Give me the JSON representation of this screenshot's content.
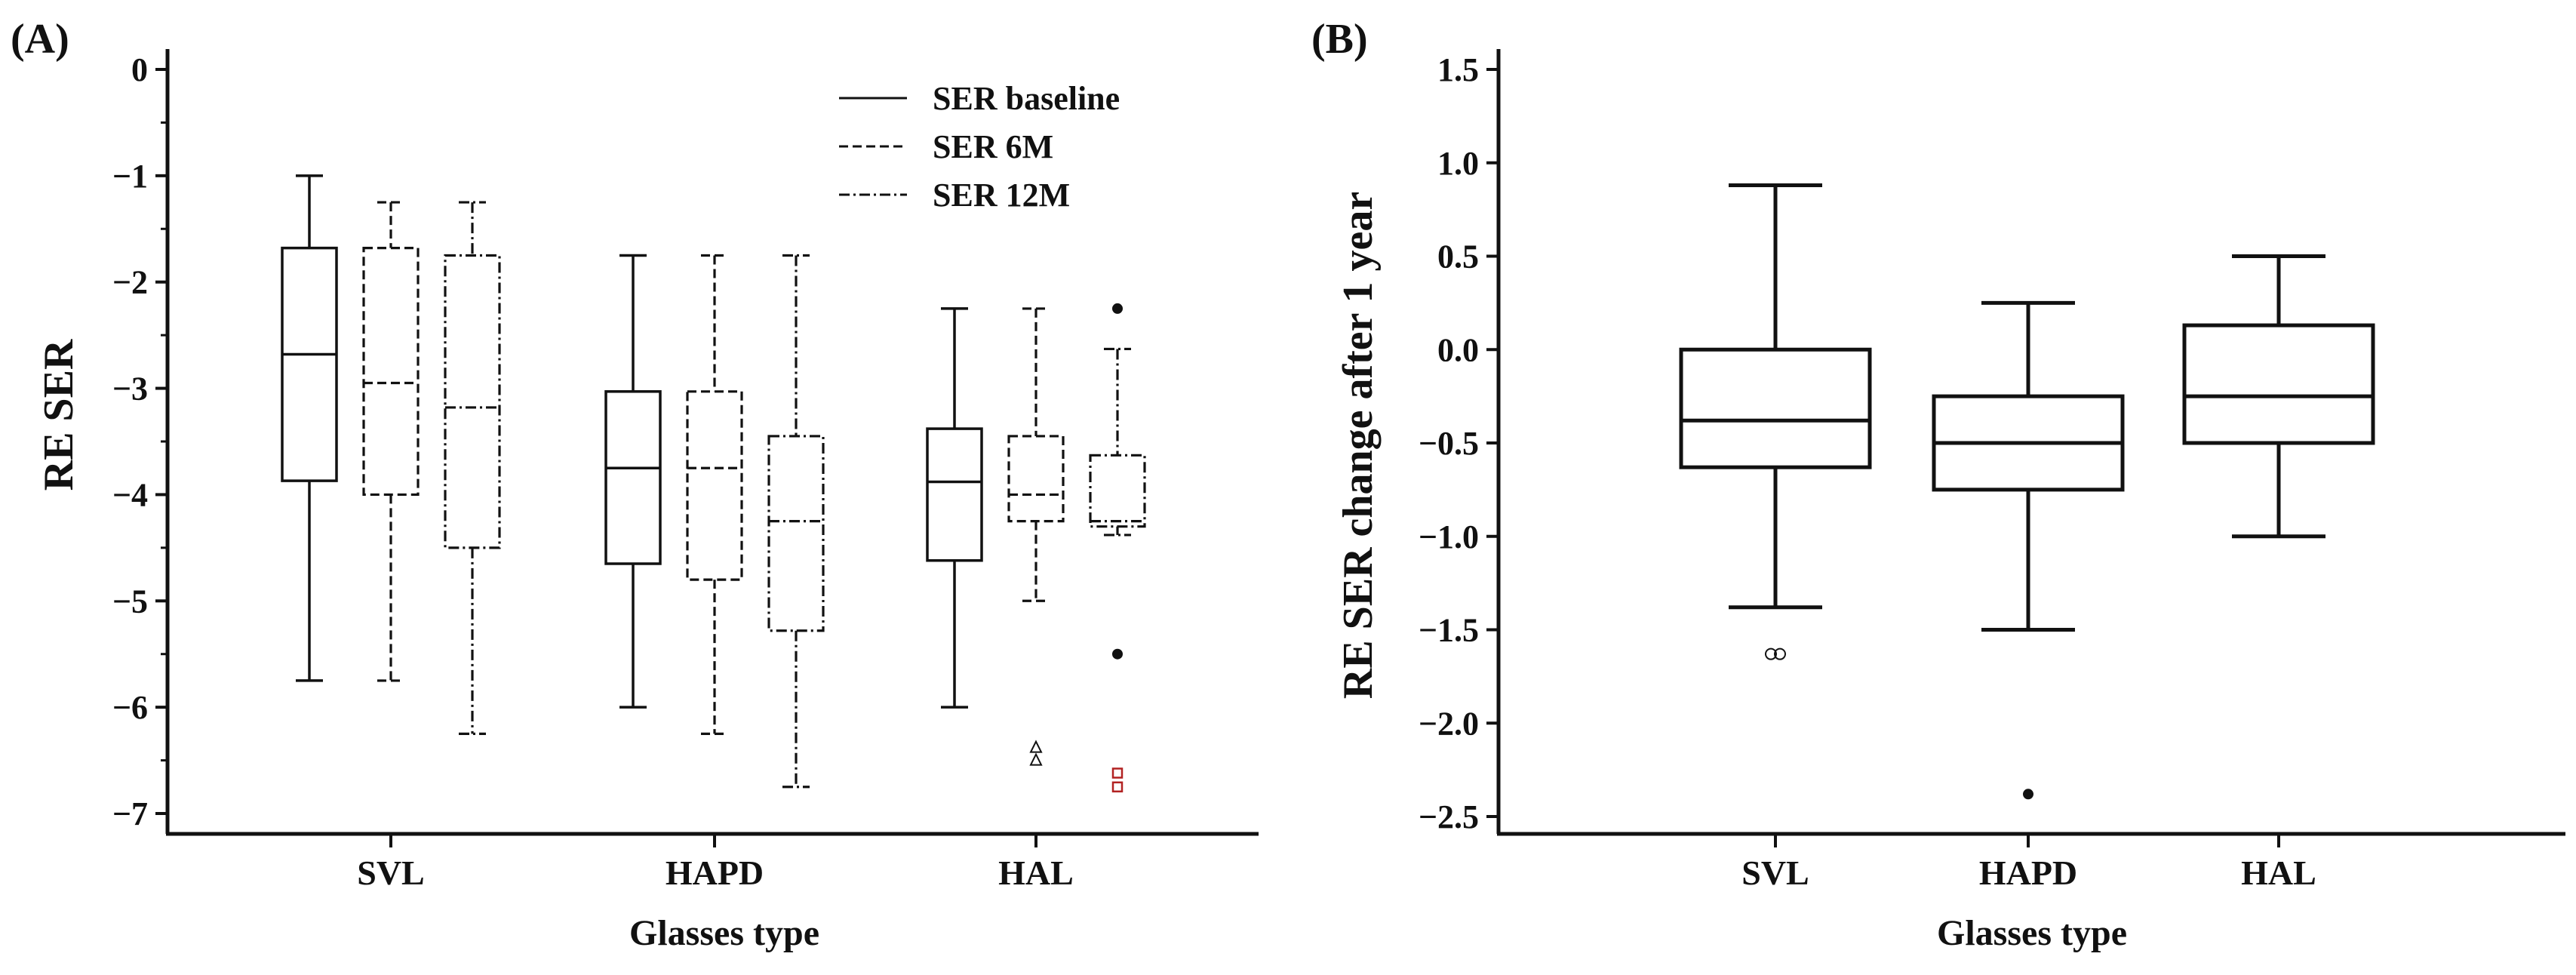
{
  "chart_data": [
    {
      "panel_label": "(A)",
      "type": "boxplot",
      "xlabel": "Glasses type",
      "ylabel": "RE SER",
      "ylim": [
        -7.2,
        0.2
      ],
      "yticks": [
        0,
        -1,
        -2,
        -3,
        -4,
        -5,
        -6,
        -7
      ],
      "ytick_labels": [
        "0",
        "−1",
        "−2",
        "−3",
        "−4",
        "−5",
        "−6",
        "−7"
      ],
      "categories": [
        "SVL",
        "HAPD",
        "HAL"
      ],
      "legend_position": "top-right",
      "series": [
        {
          "name": "SER baseline",
          "style": "solid",
          "boxes": [
            {
              "category": "SVL",
              "whisker_low": -5.75,
              "q1": -3.87,
              "median": -2.68,
              "q3": -1.68,
              "whisker_high": -1.0,
              "outliers": []
            },
            {
              "category": "HAPD",
              "whisker_low": -6.0,
              "q1": -4.65,
              "median": -3.75,
              "q3": -3.03,
              "whisker_high": -1.75,
              "outliers": []
            },
            {
              "category": "HAL",
              "whisker_low": -6.0,
              "q1": -4.62,
              "median": -3.88,
              "q3": -3.38,
              "whisker_high": -2.25,
              "outliers": []
            }
          ]
        },
        {
          "name": "SER 6M",
          "style": "dashed",
          "boxes": [
            {
              "category": "SVL",
              "whisker_low": -5.75,
              "q1": -4.0,
              "median": -2.95,
              "q3": -1.68,
              "whisker_high": -1.25,
              "outliers": []
            },
            {
              "category": "HAPD",
              "whisker_low": -6.25,
              "q1": -4.8,
              "median": -3.75,
              "q3": -3.03,
              "whisker_high": -1.75,
              "outliers": []
            },
            {
              "category": "HAL",
              "whisker_low": -5.0,
              "q1": -4.25,
              "median": -4.0,
              "q3": -3.45,
              "whisker_high": -2.25,
              "outliers": [
                {
                  "value": -6.38,
                  "marker": "triangle"
                },
                {
                  "value": -6.5,
                  "marker": "triangle"
                }
              ]
            }
          ]
        },
        {
          "name": "SER 12M",
          "style": "dashdot",
          "boxes": [
            {
              "category": "SVL",
              "whisker_low": -6.25,
              "q1": -4.5,
              "median": -3.18,
              "q3": -1.75,
              "whisker_high": -1.25,
              "outliers": []
            },
            {
              "category": "HAPD",
              "whisker_low": -6.75,
              "q1": -5.28,
              "median": -4.25,
              "q3": -3.45,
              "whisker_high": -1.75,
              "outliers": []
            },
            {
              "category": "HAL",
              "whisker_low": -4.38,
              "q1": -4.3,
              "median": -4.25,
              "q3": -3.63,
              "whisker_high": -2.63,
              "outliers": [
                {
                  "value": -2.25,
                  "marker": "dot"
                },
                {
                  "value": -5.5,
                  "marker": "dot"
                },
                {
                  "value": -6.62,
                  "marker": "square"
                },
                {
                  "value": -6.75,
                  "marker": "square"
                }
              ]
            }
          ]
        }
      ]
    },
    {
      "panel_label": "(B)",
      "type": "boxplot",
      "xlabel": "Glasses type",
      "ylabel": "RE SER change after 1 year",
      "ylim": [
        -2.6,
        1.6
      ],
      "yticks": [
        1.5,
        1.0,
        0.5,
        0.0,
        -0.5,
        -1.0,
        -1.5,
        -2.0,
        -2.5
      ],
      "ytick_labels": [
        "1.5",
        "1.0",
        "0.5",
        "0.0",
        "−0.5",
        "−1.0",
        "−1.5",
        "−2.0",
        "−2.5"
      ],
      "categories": [
        "SVL",
        "HAPD",
        "HAL"
      ],
      "series": [
        {
          "name": "SER change",
          "style": "solid",
          "boxes": [
            {
              "category": "SVL",
              "whisker_low": -1.38,
              "q1": -0.63,
              "median": -0.38,
              "q3": 0.0,
              "whisker_high": 0.88,
              "outliers": [
                {
                  "value": -1.63,
                  "marker": "pair-circle"
                }
              ]
            },
            {
              "category": "HAPD",
              "whisker_low": -1.5,
              "q1": -0.75,
              "median": -0.5,
              "q3": -0.25,
              "whisker_high": 0.25,
              "outliers": [
                {
                  "value": -2.38,
                  "marker": "dot"
                }
              ]
            },
            {
              "category": "HAL",
              "whisker_low": -1.0,
              "q1": -0.5,
              "median": -0.25,
              "q3": 0.13,
              "whisker_high": 0.5,
              "outliers": []
            }
          ]
        }
      ]
    }
  ],
  "colors": {
    "ink": "#111111",
    "square_outlier": "#b22222"
  }
}
